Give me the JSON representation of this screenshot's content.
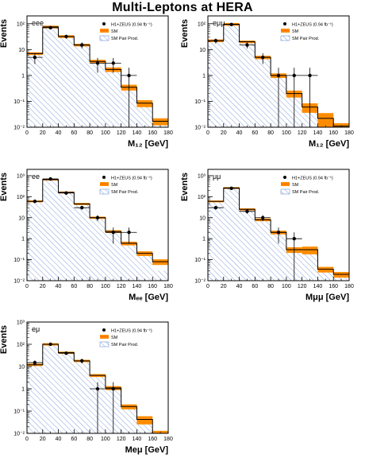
{
  "title": "Multi-Leptons at HERA",
  "colors": {
    "frame": "#000000",
    "sm_line": "#000000",
    "sm_band": "#ff8c00",
    "sm_band_line": "#ff6a00",
    "pair_hatch": "#2f5fbf",
    "data": "#000000"
  },
  "legend": {
    "data": "H1+ZEUS (0.94 fb⁻¹)",
    "sm": "SM",
    "pair": "SM Pair Prod."
  },
  "chart_data": [
    {
      "type": "histogram",
      "channel": "eee",
      "ylabel": "Events",
      "xlabel": "M₁₂ [GeV]",
      "yscale": "log",
      "xlim": [
        0,
        180
      ],
      "ylim": [
        0.01,
        200
      ],
      "x_ticks": [
        0,
        20,
        40,
        60,
        80,
        100,
        120,
        140,
        160,
        180
      ],
      "y_ticks": [
        "10⁻²",
        "10⁻¹",
        "1",
        "10",
        "10²"
      ],
      "bin_edges": [
        0,
        20,
        40,
        60,
        80,
        100,
        120,
        140,
        160,
        180
      ],
      "sm": [
        7,
        75,
        32,
        15,
        3.5,
        1.7,
        0.35,
        0.085,
        0.017
      ],
      "sm_error": [
        0.12,
        0.12,
        0.12,
        0.12,
        0.15,
        0.2,
        0.25,
        0.3,
        0.3
      ],
      "pair": [
        6.5,
        72,
        30,
        14,
        3.1,
        1.5,
        0.3,
        0.07,
        0.013
      ],
      "data_x": [
        10,
        30,
        50,
        70,
        90,
        110,
        130
      ],
      "data_y": [
        5,
        70,
        32,
        15,
        3,
        3,
        1
      ]
    },
    {
      "type": "histogram",
      "channel": "eμμ",
      "ylabel": "Events",
      "xlabel": "M₁₂ [GeV]",
      "yscale": "log",
      "xlim": [
        0,
        180
      ],
      "ylim": [
        0.01,
        200
      ],
      "x_ticks": [
        0,
        20,
        40,
        60,
        80,
        100,
        120,
        140,
        160,
        180
      ],
      "y_ticks": [
        "10⁻²",
        "10⁻¹",
        "1",
        "10",
        "10²"
      ],
      "bin_edges": [
        0,
        20,
        40,
        60,
        80,
        100,
        120,
        140,
        160,
        180
      ],
      "sm": [
        22,
        95,
        20,
        5,
        1.0,
        0.2,
        0.06,
        0.022,
        0.011
      ],
      "sm_error": [
        0.12,
        0.12,
        0.12,
        0.15,
        0.2,
        0.3,
        0.4,
        0.6,
        0.3
      ],
      "pair": [
        21,
        92,
        19,
        4.6,
        0.9,
        0.16,
        0.05,
        0.011,
        0.01
      ],
      "data_x": [
        10,
        30,
        50,
        70,
        90,
        110,
        130
      ],
      "data_y": [
        22,
        93,
        15,
        5,
        1,
        1,
        1
      ]
    },
    {
      "type": "histogram",
      "channel": "ee",
      "ylabel": "Events",
      "xlabel": "Mₑₑ [GeV]",
      "yscale": "log",
      "xlim": [
        0,
        180
      ],
      "ylim": [
        0.01,
        2000
      ],
      "x_ticks": [
        0,
        20,
        40,
        60,
        80,
        100,
        120,
        140,
        160,
        180
      ],
      "y_ticks": [
        "10⁻²",
        "10⁻¹",
        "1",
        "10",
        "10²",
        "10³"
      ],
      "bin_edges": [
        0,
        20,
        40,
        60,
        80,
        100,
        120,
        140,
        160,
        180
      ],
      "sm": [
        60,
        650,
        160,
        45,
        10,
        2.2,
        0.6,
        0.2,
        0.08
      ],
      "sm_error": [
        0.1,
        0.1,
        0.1,
        0.12,
        0.12,
        0.15,
        0.2,
        0.25,
        0.3
      ],
      "pair": [
        55,
        600,
        150,
        40,
        9,
        2,
        0.5,
        0.15,
        0.03
      ],
      "data_x": [
        10,
        30,
        50,
        70,
        90,
        110,
        130
      ],
      "data_y": [
        60,
        700,
        150,
        30,
        10,
        2,
        2
      ]
    },
    {
      "type": "histogram",
      "channel": "μμ",
      "ylabel": "Events",
      "xlabel": "Mμμ [GeV]",
      "yscale": "log",
      "xlim": [
        0,
        180
      ],
      "ylim": [
        0.01,
        2000
      ],
      "x_ticks": [
        0,
        20,
        40,
        60,
        80,
        100,
        120,
        140,
        160,
        180
      ],
      "y_ticks": [
        "10⁻²",
        "10⁻¹",
        "1",
        "10",
        "10²",
        "10³"
      ],
      "bin_edges": [
        0,
        20,
        40,
        60,
        80,
        100,
        120,
        140,
        160,
        180
      ],
      "sm": [
        60,
        260,
        25,
        8,
        2,
        0.3,
        0.3,
        0.035,
        0.02
      ],
      "sm_error": [
        0.1,
        0.1,
        0.12,
        0.15,
        0.2,
        0.3,
        0.4,
        0.3,
        0.3
      ],
      "pair": [
        55,
        250,
        23,
        7,
        1.8,
        0.25,
        0.25,
        0.03,
        0.015
      ],
      "data_x": [
        10,
        30,
        50,
        70,
        90,
        110
      ],
      "data_y": [
        30,
        250,
        20,
        10,
        2,
        1
      ]
    },
    {
      "type": "histogram",
      "channel": "eμ",
      "ylabel": "Events",
      "xlabel": "Meμ [GeV]",
      "yscale": "log",
      "xlim": [
        0,
        180
      ],
      "ylim": [
        0.01,
        1000
      ],
      "x_ticks": [
        0,
        20,
        40,
        60,
        80,
        100,
        120,
        140,
        160,
        180
      ],
      "y_ticks": [
        "10⁻²",
        "10⁻¹",
        "1",
        "10",
        "10²",
        "10³"
      ],
      "bin_edges": [
        0,
        20,
        40,
        60,
        80,
        100,
        120,
        140,
        160,
        180
      ],
      "sm": [
        12,
        100,
        42,
        18,
        4,
        1.1,
        0.16,
        0.042,
        0.01
      ],
      "sm_error": [
        0.12,
        0.12,
        0.12,
        0.12,
        0.15,
        0.2,
        0.25,
        0.4,
        0.3
      ],
      "pair": [
        11,
        95,
        40,
        17,
        3.7,
        1.0,
        0.14,
        0.03,
        0.01
      ],
      "data_x": [
        10,
        30,
        50,
        70,
        90,
        110
      ],
      "data_y": [
        15,
        100,
        40,
        18,
        1,
        1
      ]
    }
  ]
}
